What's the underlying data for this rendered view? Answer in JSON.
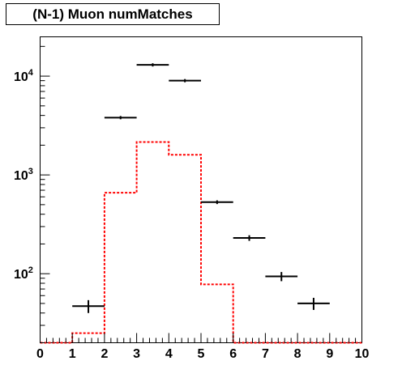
{
  "chart_data": {
    "type": "histogram",
    "title": "(N-1) Muon numMatches",
    "xlabel": "",
    "ylabel": "",
    "x_range": [
      0,
      10
    ],
    "y_scale": "log",
    "y_range": [
      20,
      25000
    ],
    "x_tick_labels": [
      "0",
      "1",
      "2",
      "3",
      "4",
      "5",
      "6",
      "7",
      "8",
      "9",
      "10"
    ],
    "y_tick_labels": [
      {
        "base": "10",
        "exp": "2",
        "value": 100
      },
      {
        "base": "10",
        "exp": "3",
        "value": 1000
      },
      {
        "base": "10",
        "exp": "4",
        "value": 10000
      }
    ],
    "grid": false,
    "series": [
      {
        "style": "black markers with error bars",
        "color": "#000000",
        "bins": [
          {
            "x_low": 1,
            "x_high": 2,
            "value": 47,
            "err": 7
          },
          {
            "x_low": 2,
            "x_high": 3,
            "value": 3800,
            "err": 62
          },
          {
            "x_low": 3,
            "x_high": 4,
            "value": 13000,
            "err": 114
          },
          {
            "x_low": 4,
            "x_high": 5,
            "value": 9000,
            "err": 95
          },
          {
            "x_low": 5,
            "x_high": 6,
            "value": 530,
            "err": 23
          },
          {
            "x_low": 6,
            "x_high": 7,
            "value": 230,
            "err": 15
          },
          {
            "x_low": 7,
            "x_high": 8,
            "value": 94,
            "err": 10
          },
          {
            "x_low": 8,
            "x_high": 9,
            "value": 50,
            "err": 7
          }
        ]
      },
      {
        "style": "red dotted step histogram",
        "color": "#ff0000",
        "bins": [
          {
            "x_low": 0,
            "x_high": 1,
            "value": 20
          },
          {
            "x_low": 1,
            "x_high": 2,
            "value": 25
          },
          {
            "x_low": 2,
            "x_high": 3,
            "value": 660
          },
          {
            "x_low": 3,
            "x_high": 4,
            "value": 2150
          },
          {
            "x_low": 4,
            "x_high": 5,
            "value": 1600
          },
          {
            "x_low": 5,
            "x_high": 6,
            "value": 78
          },
          {
            "x_low": 6,
            "x_high": 7,
            "value": 20
          },
          {
            "x_low": 7,
            "x_high": 8,
            "value": 20
          },
          {
            "x_low": 8,
            "x_high": 9,
            "value": 20
          },
          {
            "x_low": 9,
            "x_high": 10,
            "value": 20
          }
        ]
      }
    ]
  }
}
